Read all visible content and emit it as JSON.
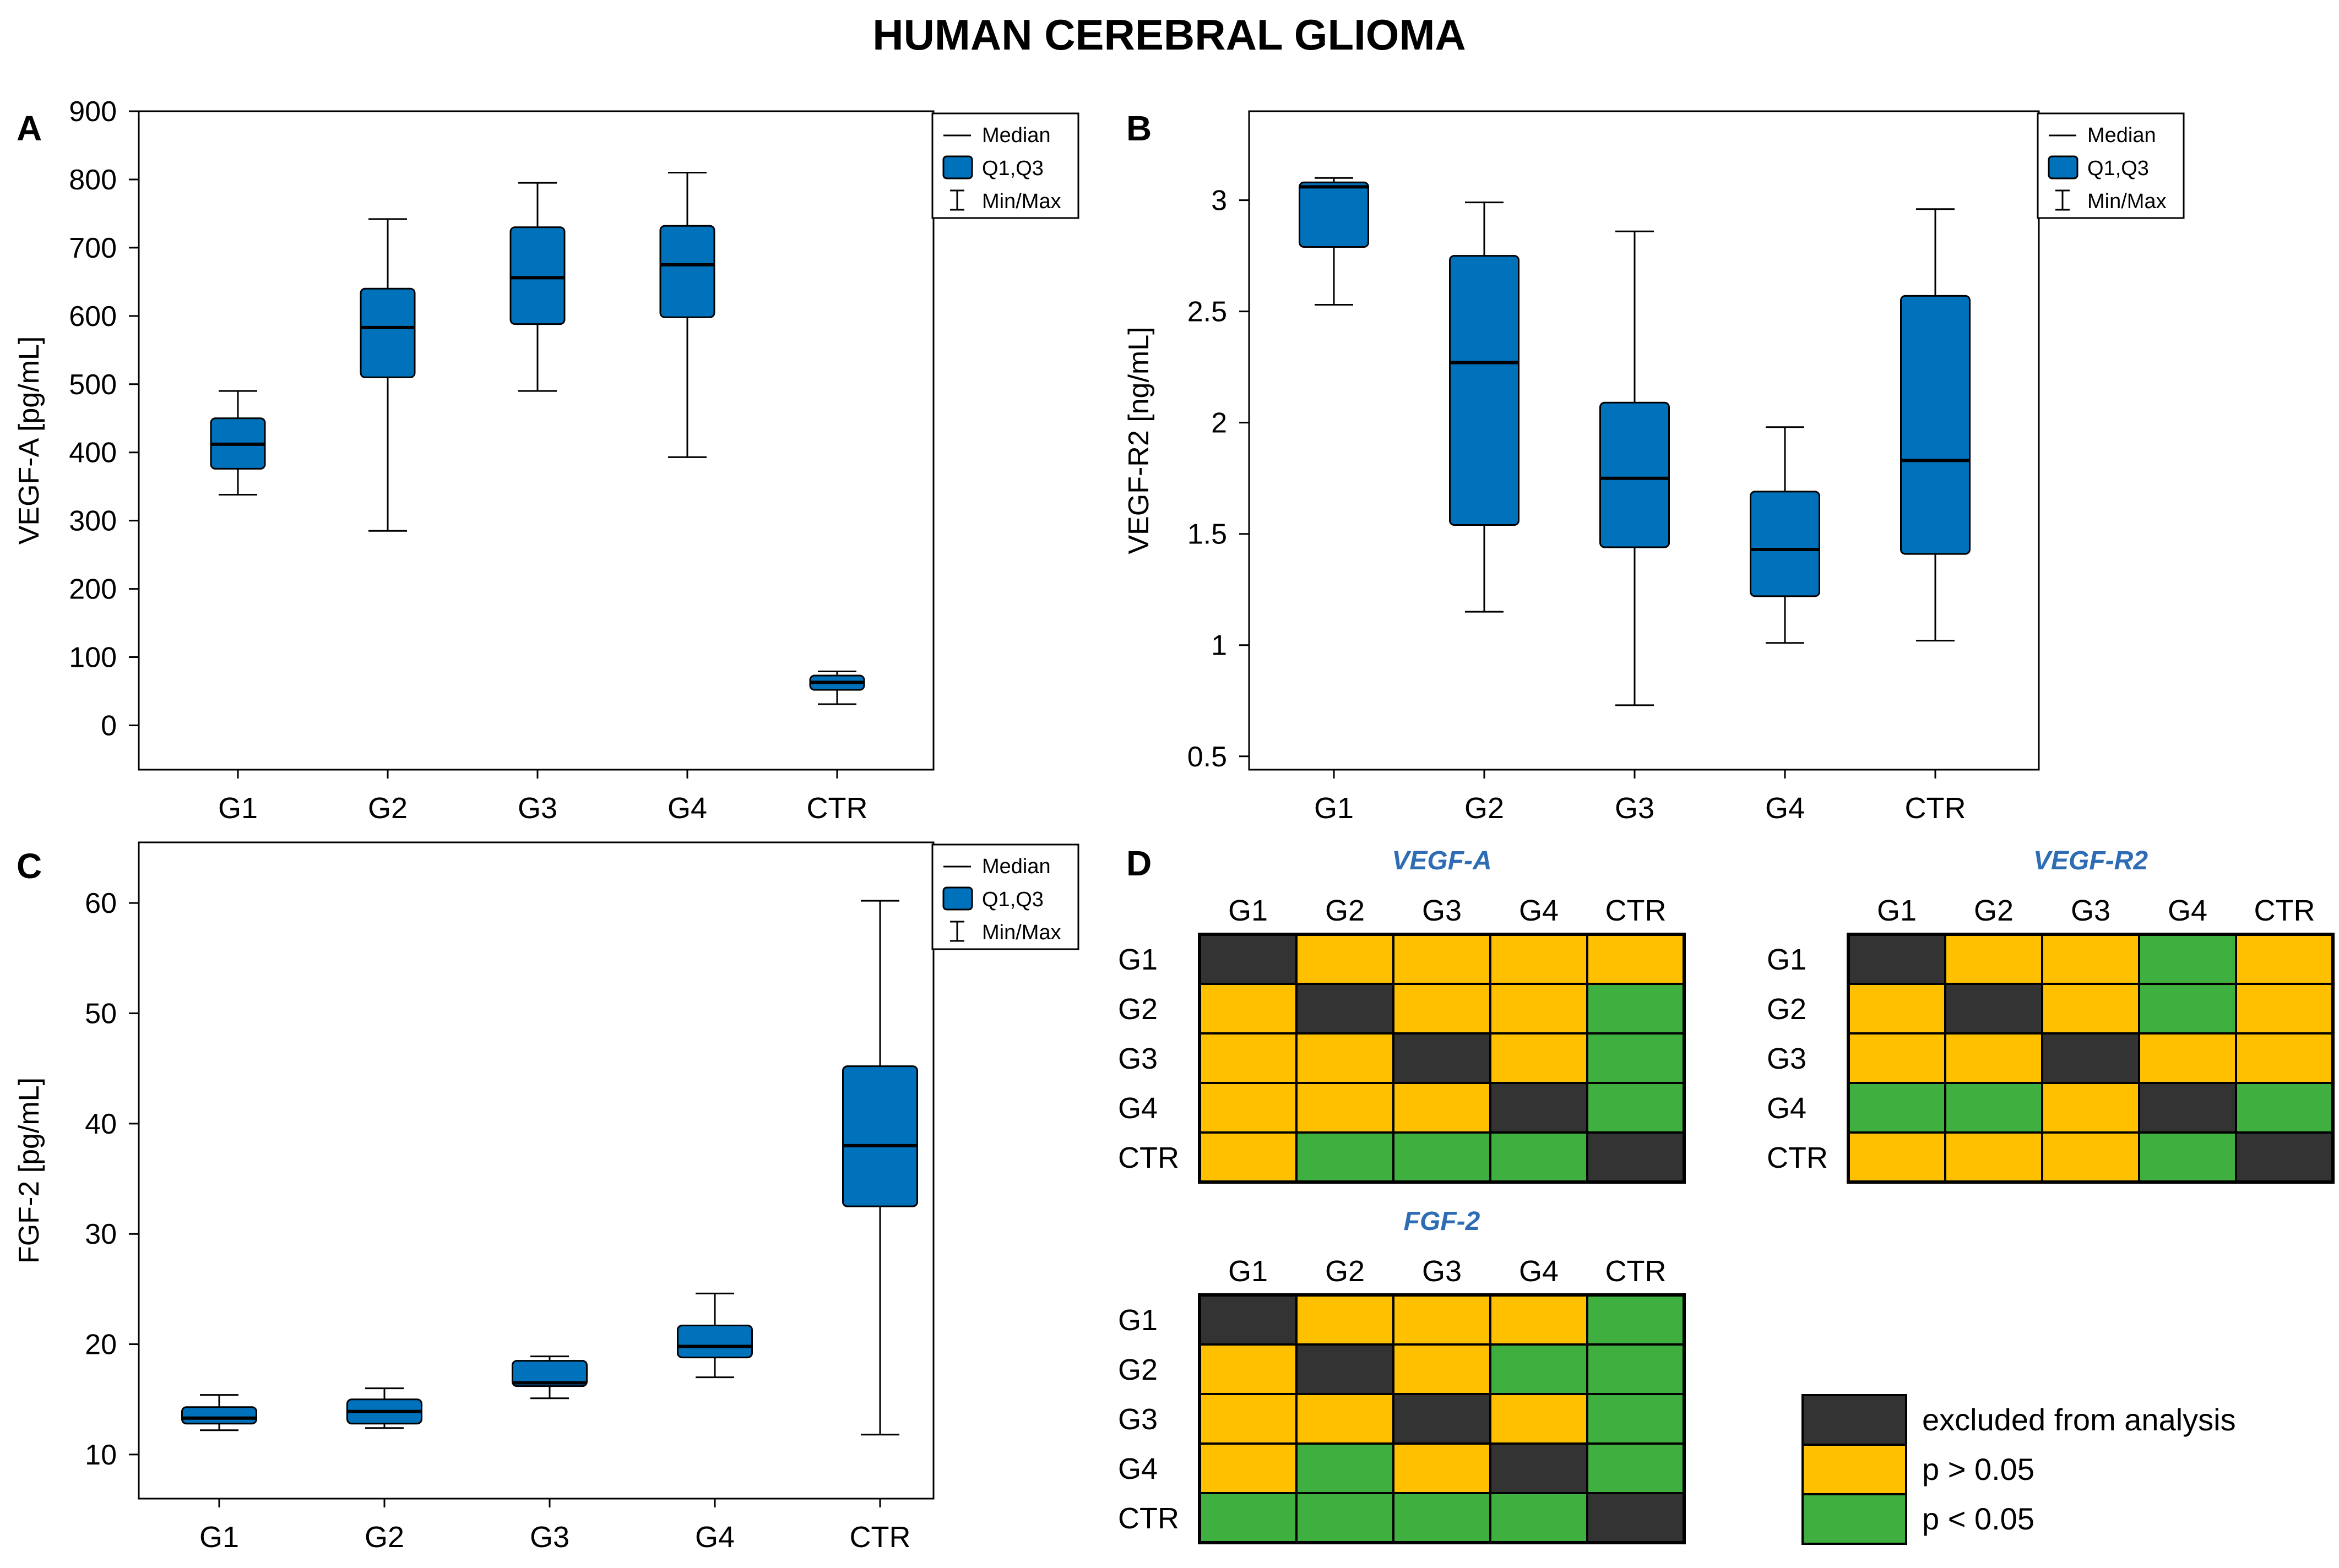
{
  "figure_title": "HUMAN  CEREBRAL  GLIOMA",
  "colors": {
    "box_fill": "#0072BC",
    "excluded": "#333333",
    "not_significant": "#FFC000",
    "significant": "#3FAF3F",
    "heatmap_title": "#2E6DB4"
  },
  "legend_box": {
    "median": "Median",
    "quartiles": "Q1,Q3",
    "minmax": "Min/Max"
  },
  "chart_data": [
    {
      "type": "box",
      "panel_label": "A",
      "ylabel": "VEGF-A [pg/mL]",
      "xlabel": "",
      "ylim": [
        -65,
        900
      ],
      "yticks": [
        0,
        100,
        200,
        300,
        400,
        500,
        600,
        700,
        800,
        900
      ],
      "categories": [
        "G1",
        "G2",
        "G3",
        "G4",
        "CTR"
      ],
      "boxes": [
        {
          "min": 338,
          "q1": 376,
          "median": 412,
          "q3": 450,
          "max": 490
        },
        {
          "min": 285,
          "q1": 510,
          "median": 583,
          "q3": 640,
          "max": 742
        },
        {
          "min": 490,
          "q1": 588,
          "median": 656,
          "q3": 730,
          "max": 795
        },
        {
          "min": 393,
          "q1": 598,
          "median": 675,
          "q3": 732,
          "max": 810
        },
        {
          "min": 31,
          "q1": 52,
          "median": 63,
          "q3": 73,
          "max": 79
        }
      ]
    },
    {
      "type": "box",
      "panel_label": "B",
      "ylabel": "VEGF-R2 [ng/mL]",
      "xlabel": "",
      "ylim": [
        0.44,
        3.4
      ],
      "yticks": [
        0.5,
        1,
        1.5,
        2,
        2.5,
        3
      ],
      "ytick_labels": [
        "0.5",
        "1",
        "1.5",
        "2",
        "2.5",
        "3"
      ],
      "categories": [
        "G1",
        "G2",
        "G3",
        "G4",
        "CTR"
      ],
      "boxes": [
        {
          "min": 2.53,
          "q1": 2.79,
          "median": 3.06,
          "q3": 3.08,
          "max": 3.1
        },
        {
          "min": 1.15,
          "q1": 1.54,
          "median": 2.27,
          "q3": 2.75,
          "max": 2.99
        },
        {
          "min": 0.73,
          "q1": 1.44,
          "median": 1.75,
          "q3": 2.09,
          "max": 2.86
        },
        {
          "min": 1.01,
          "q1": 1.22,
          "median": 1.43,
          "q3": 1.69,
          "max": 1.98
        },
        {
          "min": 1.02,
          "q1": 1.41,
          "median": 1.83,
          "q3": 2.57,
          "max": 2.96
        }
      ]
    },
    {
      "type": "box",
      "panel_label": "C",
      "ylabel": "FGF-2 [pg/mL]",
      "xlabel": "",
      "ylim": [
        6,
        65.5
      ],
      "yticks": [
        10,
        20,
        30,
        40,
        50,
        60
      ],
      "categories": [
        "G1",
        "G2",
        "G3",
        "G4",
        "CTR"
      ],
      "boxes": [
        {
          "min": 12.2,
          "q1": 12.8,
          "median": 13.3,
          "q3": 14.3,
          "max": 15.4
        },
        {
          "min": 12.4,
          "q1": 12.8,
          "median": 13.9,
          "q3": 15.0,
          "max": 16.0
        },
        {
          "min": 15.1,
          "q1": 16.2,
          "median": 16.5,
          "q3": 18.5,
          "max": 18.9
        },
        {
          "min": 17.0,
          "q1": 18.8,
          "median": 19.8,
          "q3": 21.7,
          "max": 24.6
        },
        {
          "min": 11.8,
          "q1": 32.5,
          "median": 38.0,
          "q3": 45.2,
          "max": 60.2
        }
      ]
    },
    {
      "type": "heatmap",
      "panel_label": "D",
      "title": "VEGF-A",
      "rows": [
        "G1",
        "G2",
        "G3",
        "G4",
        "CTR"
      ],
      "columns": [
        "G1",
        "G2",
        "G3",
        "G4",
        "CTR"
      ],
      "matrix": [
        [
          "excluded",
          "ns",
          "ns",
          "ns",
          "ns"
        ],
        [
          "ns",
          "excluded",
          "ns",
          "ns",
          "sig"
        ],
        [
          "ns",
          "ns",
          "excluded",
          "ns",
          "sig"
        ],
        [
          "ns",
          "ns",
          "ns",
          "excluded",
          "sig"
        ],
        [
          "ns",
          "sig",
          "sig",
          "sig",
          "excluded"
        ]
      ]
    },
    {
      "type": "heatmap",
      "panel_label": "",
      "title": "VEGF-R2",
      "rows": [
        "G1",
        "G2",
        "G3",
        "G4",
        "CTR"
      ],
      "columns": [
        "G1",
        "G2",
        "G3",
        "G4",
        "CTR"
      ],
      "matrix": [
        [
          "excluded",
          "ns",
          "ns",
          "sig",
          "ns"
        ],
        [
          "ns",
          "excluded",
          "ns",
          "sig",
          "ns"
        ],
        [
          "ns",
          "ns",
          "excluded",
          "ns",
          "ns"
        ],
        [
          "sig",
          "sig",
          "ns",
          "excluded",
          "sig"
        ],
        [
          "ns",
          "ns",
          "ns",
          "sig",
          "excluded"
        ]
      ]
    },
    {
      "type": "heatmap",
      "panel_label": "",
      "title": "FGF-2",
      "rows": [
        "G1",
        "G2",
        "G3",
        "G4",
        "CTR"
      ],
      "columns": [
        "G1",
        "G2",
        "G3",
        "G4",
        "CTR"
      ],
      "matrix": [
        [
          "excluded",
          "ns",
          "ns",
          "ns",
          "sig"
        ],
        [
          "ns",
          "excluded",
          "ns",
          "sig",
          "sig"
        ],
        [
          "ns",
          "ns",
          "excluded",
          "ns",
          "sig"
        ],
        [
          "ns",
          "sig",
          "ns",
          "excluded",
          "sig"
        ],
        [
          "sig",
          "sig",
          "sig",
          "sig",
          "excluded"
        ]
      ]
    }
  ],
  "significance_legend": [
    {
      "key": "excluded",
      "label": "excluded from analysis"
    },
    {
      "key": "ns",
      "label": "p > 0.05"
    },
    {
      "key": "sig",
      "label": "p < 0.05"
    }
  ]
}
